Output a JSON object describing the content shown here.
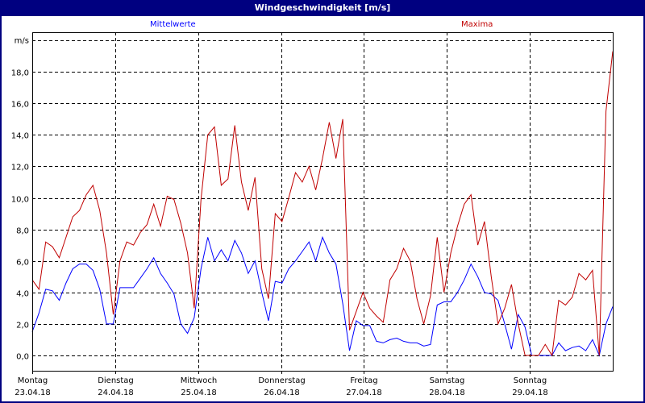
{
  "window": {
    "title": "Windgeschwindigkeit [m/s]",
    "border_color": "#000080",
    "title_bg": "#000080"
  },
  "legend": {
    "mean_label": "Mittelwerte",
    "max_label": "Maxima",
    "mean_color": "#0000ff",
    "max_color": "#c00000"
  },
  "chart_data": {
    "type": "line",
    "title": "Windgeschwindigkeit [m/s]",
    "xlabel": "",
    "ylabel": "m/s",
    "ylim": [
      -1,
      20
    ],
    "yticks": [
      0,
      2,
      4,
      6,
      8,
      10,
      12,
      14,
      16,
      18
    ],
    "ytick_labels": [
      "0,0",
      "2,0",
      "4,0",
      "6,0",
      "8,0",
      "10,0",
      "12,0",
      "14,0",
      "16,0",
      "18,0"
    ],
    "y_unit_label": "m/s",
    "grid": true,
    "x_unit": "hours since Montag 23.04.18 00:00 (2-hour samples)",
    "categories": [
      {
        "day": "Montag",
        "date": "23.04.18"
      },
      {
        "day": "Dienstag",
        "date": "24.04.18"
      },
      {
        "day": "Mittwoch",
        "date": "25.04.18"
      },
      {
        "day": "Donnerstag",
        "date": "26.04.18"
      },
      {
        "day": "Freitag",
        "date": "27.04.18"
      },
      {
        "day": "Samstag",
        "date": "28.04.18"
      },
      {
        "day": "Sonntag",
        "date": "29.04.18"
      }
    ],
    "legend_position": "top",
    "series": [
      {
        "name": "Mittelwerte",
        "color": "#0000ff",
        "values": [
          1.5,
          2.7,
          4.2,
          4.1,
          3.5,
          4.6,
          5.5,
          5.8,
          5.8,
          5.4,
          4.2,
          2.0,
          2.0,
          4.3,
          4.3,
          4.3,
          4.9,
          5.5,
          6.2,
          5.2,
          4.6,
          3.9,
          2.0,
          1.4,
          2.4,
          5.5,
          7.5,
          6.0,
          6.7,
          6.0,
          7.3,
          6.5,
          5.2,
          6.0,
          4.0,
          2.2,
          4.7,
          4.6,
          5.5,
          6.0,
          6.6,
          7.2,
          6.0,
          7.5,
          6.5,
          5.8,
          3.3,
          0.3,
          2.2,
          1.9,
          1.9,
          0.9,
          0.8,
          1.0,
          1.1,
          0.9,
          0.8,
          0.8,
          0.6,
          0.7,
          3.2,
          3.4,
          3.4,
          4.0,
          4.8,
          5.8,
          5.0,
          4.0,
          3.9,
          3.5,
          2.0,
          0.4,
          2.6,
          1.8,
          0.0,
          0.0,
          0.0,
          0.0,
          0.8,
          0.3,
          0.5,
          0.6,
          0.3,
          1.0,
          0.0,
          2.0,
          3.1
        ]
      },
      {
        "name": "Maxima",
        "color": "#c00000",
        "values": [
          4.8,
          4.2,
          7.2,
          6.9,
          6.2,
          7.5,
          8.8,
          9.2,
          10.2,
          10.8,
          9.2,
          6.5,
          2.6,
          6.0,
          7.2,
          7.0,
          7.8,
          8.3,
          9.6,
          8.2,
          10.1,
          9.9,
          8.4,
          6.5,
          3.0,
          9.9,
          14.0,
          14.5,
          10.8,
          11.2,
          14.6,
          11.0,
          9.2,
          11.3,
          5.5,
          3.6,
          9.0,
          8.5,
          10.0,
          11.6,
          11.0,
          12.0,
          10.5,
          12.5,
          14.8,
          12.5,
          15.0,
          1.6,
          2.8,
          4.0,
          3.0,
          2.5,
          2.1,
          4.8,
          5.5,
          6.8,
          6.0,
          3.6,
          2.0,
          3.8,
          7.5,
          4.0,
          6.5,
          8.2,
          9.6,
          10.2,
          7.0,
          8.5,
          5.0,
          2.0,
          3.0,
          4.5,
          2.0,
          0.0,
          0.0,
          0.0,
          0.7,
          0.0,
          3.5,
          3.2,
          3.7,
          5.2,
          4.8,
          5.4,
          0.0,
          15.5,
          19.3
        ]
      }
    ]
  }
}
